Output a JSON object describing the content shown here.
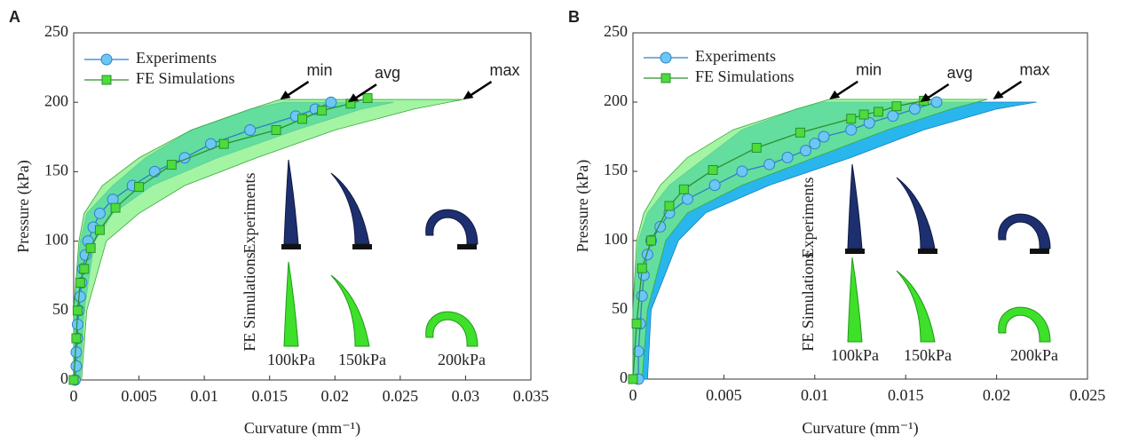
{
  "chart_data": [
    {
      "type": "line",
      "panel_label": "A",
      "xlabel": "Curvature (mm⁻¹)",
      "ylabel": "Pressure (kPa)",
      "xlim": [
        0,
        0.035
      ],
      "xticks": [
        0,
        0.005,
        0.01,
        0.015,
        0.02,
        0.025,
        0.03,
        0.035
      ],
      "ylim": [
        0,
        250
      ],
      "yticks": [
        0,
        50,
        100,
        150,
        200,
        250
      ],
      "grid": false,
      "legend": "upper left",
      "bands": [
        {
          "color": "#1cb2ec",
          "y": [
            0,
            50,
            100,
            120,
            140,
            160,
            180,
            195,
            200
          ],
          "x_low": [
            0,
            0,
            0.0005,
            0.001,
            0.003,
            0.0055,
            0.009,
            0.0135,
            0.016
          ],
          "x_high": [
            0.0005,
            0.0008,
            0.0016,
            0.003,
            0.006,
            0.011,
            0.017,
            0.022,
            0.0245
          ]
        },
        {
          "color": "#7cf07c",
          "y": [
            0,
            50,
            100,
            120,
            140,
            160,
            180,
            195,
            202
          ],
          "x_low": [
            0,
            0,
            0.0004,
            0.0008,
            0.0022,
            0.005,
            0.009,
            0.0135,
            0.0158
          ],
          "x_high": [
            0.0006,
            0.001,
            0.0025,
            0.005,
            0.0085,
            0.014,
            0.02,
            0.026,
            0.0298
          ]
        }
      ],
      "series": [
        {
          "name": "Experiments",
          "color": "#2f7fc8",
          "marker": "circle",
          "fill": "#6cc8f2",
          "x": [
            0.0001,
            0.0002,
            0.0002,
            0.0003,
            0.0003,
            0.0004,
            0.0005,
            0.0006,
            0.0007,
            0.0009,
            0.0011,
            0.0015,
            0.002,
            0.003,
            0.0045,
            0.0062,
            0.0085,
            0.0105,
            0.0135,
            0.017,
            0.0185,
            0.0197
          ],
          "values": [
            0,
            10,
            20,
            30,
            40,
            50,
            60,
            70,
            80,
            90,
            100,
            110,
            120,
            130,
            140,
            150,
            160,
            170,
            180,
            190,
            195,
            200
          ]
        },
        {
          "name": "FE Simulations",
          "color": "#2d8f2d",
          "marker": "square",
          "fill": "#4cdc3c",
          "x": [
            0,
            0.0002,
            0.0003,
            0.0005,
            0.0008,
            0.0013,
            0.002,
            0.0032,
            0.005,
            0.0075,
            0.0115,
            0.0155,
            0.0175,
            0.019,
            0.0212,
            0.0225
          ],
          "values": [
            0,
            30,
            50,
            70,
            80,
            95,
            108,
            124,
            139,
            155,
            170,
            180,
            188,
            194,
            199,
            203
          ]
        }
      ],
      "annotations": [
        {
          "text": "min",
          "x": 0.0158,
          "y": 202
        },
        {
          "text": "avg",
          "x": 0.021,
          "y": 200
        },
        {
          "text": "max",
          "x": 0.0298,
          "y": 202
        }
      ],
      "inset": {
        "row_labels": [
          "Experiments",
          "FE Simulations"
        ],
        "column_labels": [
          "100kPa",
          "150kPa",
          "200kPa"
        ]
      }
    },
    {
      "type": "line",
      "panel_label": "B",
      "xlabel": "Curvature (mm⁻¹)",
      "ylabel": "Pressure (kPa)",
      "xlim": [
        0,
        0.025
      ],
      "xticks": [
        0,
        0.005,
        0.01,
        0.015,
        0.02,
        0.025
      ],
      "ylim": [
        0,
        250
      ],
      "yticks": [
        0,
        50,
        100,
        150,
        200,
        250
      ],
      "grid": false,
      "legend": "upper left",
      "bands": [
        {
          "color": "#1cb2ec",
          "y": [
            0,
            50,
            100,
            120,
            140,
            160,
            180,
            195,
            200
          ],
          "x_low": [
            0,
            0,
            0.0003,
            0.0008,
            0.002,
            0.004,
            0.006,
            0.009,
            0.0105
          ],
          "x_high": [
            0.0008,
            0.001,
            0.0025,
            0.004,
            0.0075,
            0.012,
            0.016,
            0.02,
            0.0222
          ]
        },
        {
          "color": "#7cf07c",
          "y": [
            0,
            50,
            100,
            120,
            140,
            160,
            180,
            195,
            202
          ],
          "x_low": [
            0,
            0,
            0.0002,
            0.0006,
            0.0015,
            0.003,
            0.0055,
            0.009,
            0.0108
          ],
          "x_high": [
            0.0005,
            0.0008,
            0.0018,
            0.003,
            0.006,
            0.01,
            0.014,
            0.0175,
            0.0195
          ]
        }
      ],
      "series": [
        {
          "name": "Experiments",
          "color": "#2f7fc8",
          "marker": "circle",
          "fill": "#6cc8f2",
          "x": [
            0.0003,
            0.0003,
            0.0004,
            0.0005,
            0.0006,
            0.0008,
            0.001,
            0.0015,
            0.002,
            0.003,
            0.0045,
            0.006,
            0.0075,
            0.0085,
            0.0095,
            0.01,
            0.0105,
            0.012,
            0.013,
            0.0143,
            0.0155,
            0.0167
          ],
          "values": [
            0,
            20,
            40,
            60,
            75,
            90,
            100,
            110,
            120,
            130,
            140,
            150,
            155,
            160,
            165,
            170,
            175,
            180,
            185,
            190,
            195,
            200
          ]
        },
        {
          "name": "FE Simulations",
          "color": "#2d8f2d",
          "marker": "square",
          "fill": "#4cdc3c",
          "x": [
            0,
            0.0002,
            0.0005,
            0.001,
            0.002,
            0.0028,
            0.0044,
            0.0068,
            0.0092,
            0.012,
            0.0127,
            0.0135,
            0.0145,
            0.016
          ],
          "values": [
            0,
            40,
            80,
            100,
            125,
            137,
            151,
            167,
            178,
            188,
            191,
            193,
            197,
            201
          ]
        }
      ],
      "annotations": [
        {
          "text": "min",
          "x": 0.0108,
          "y": 202
        },
        {
          "text": "avg",
          "x": 0.0158,
          "y": 200
        },
        {
          "text": "max",
          "x": 0.0198,
          "y": 202
        }
      ],
      "inset": {
        "row_labels": [
          "Experiments",
          "FE Simulations"
        ],
        "column_labels": [
          "100kPa",
          "150kPa",
          "200kPa"
        ]
      }
    }
  ]
}
